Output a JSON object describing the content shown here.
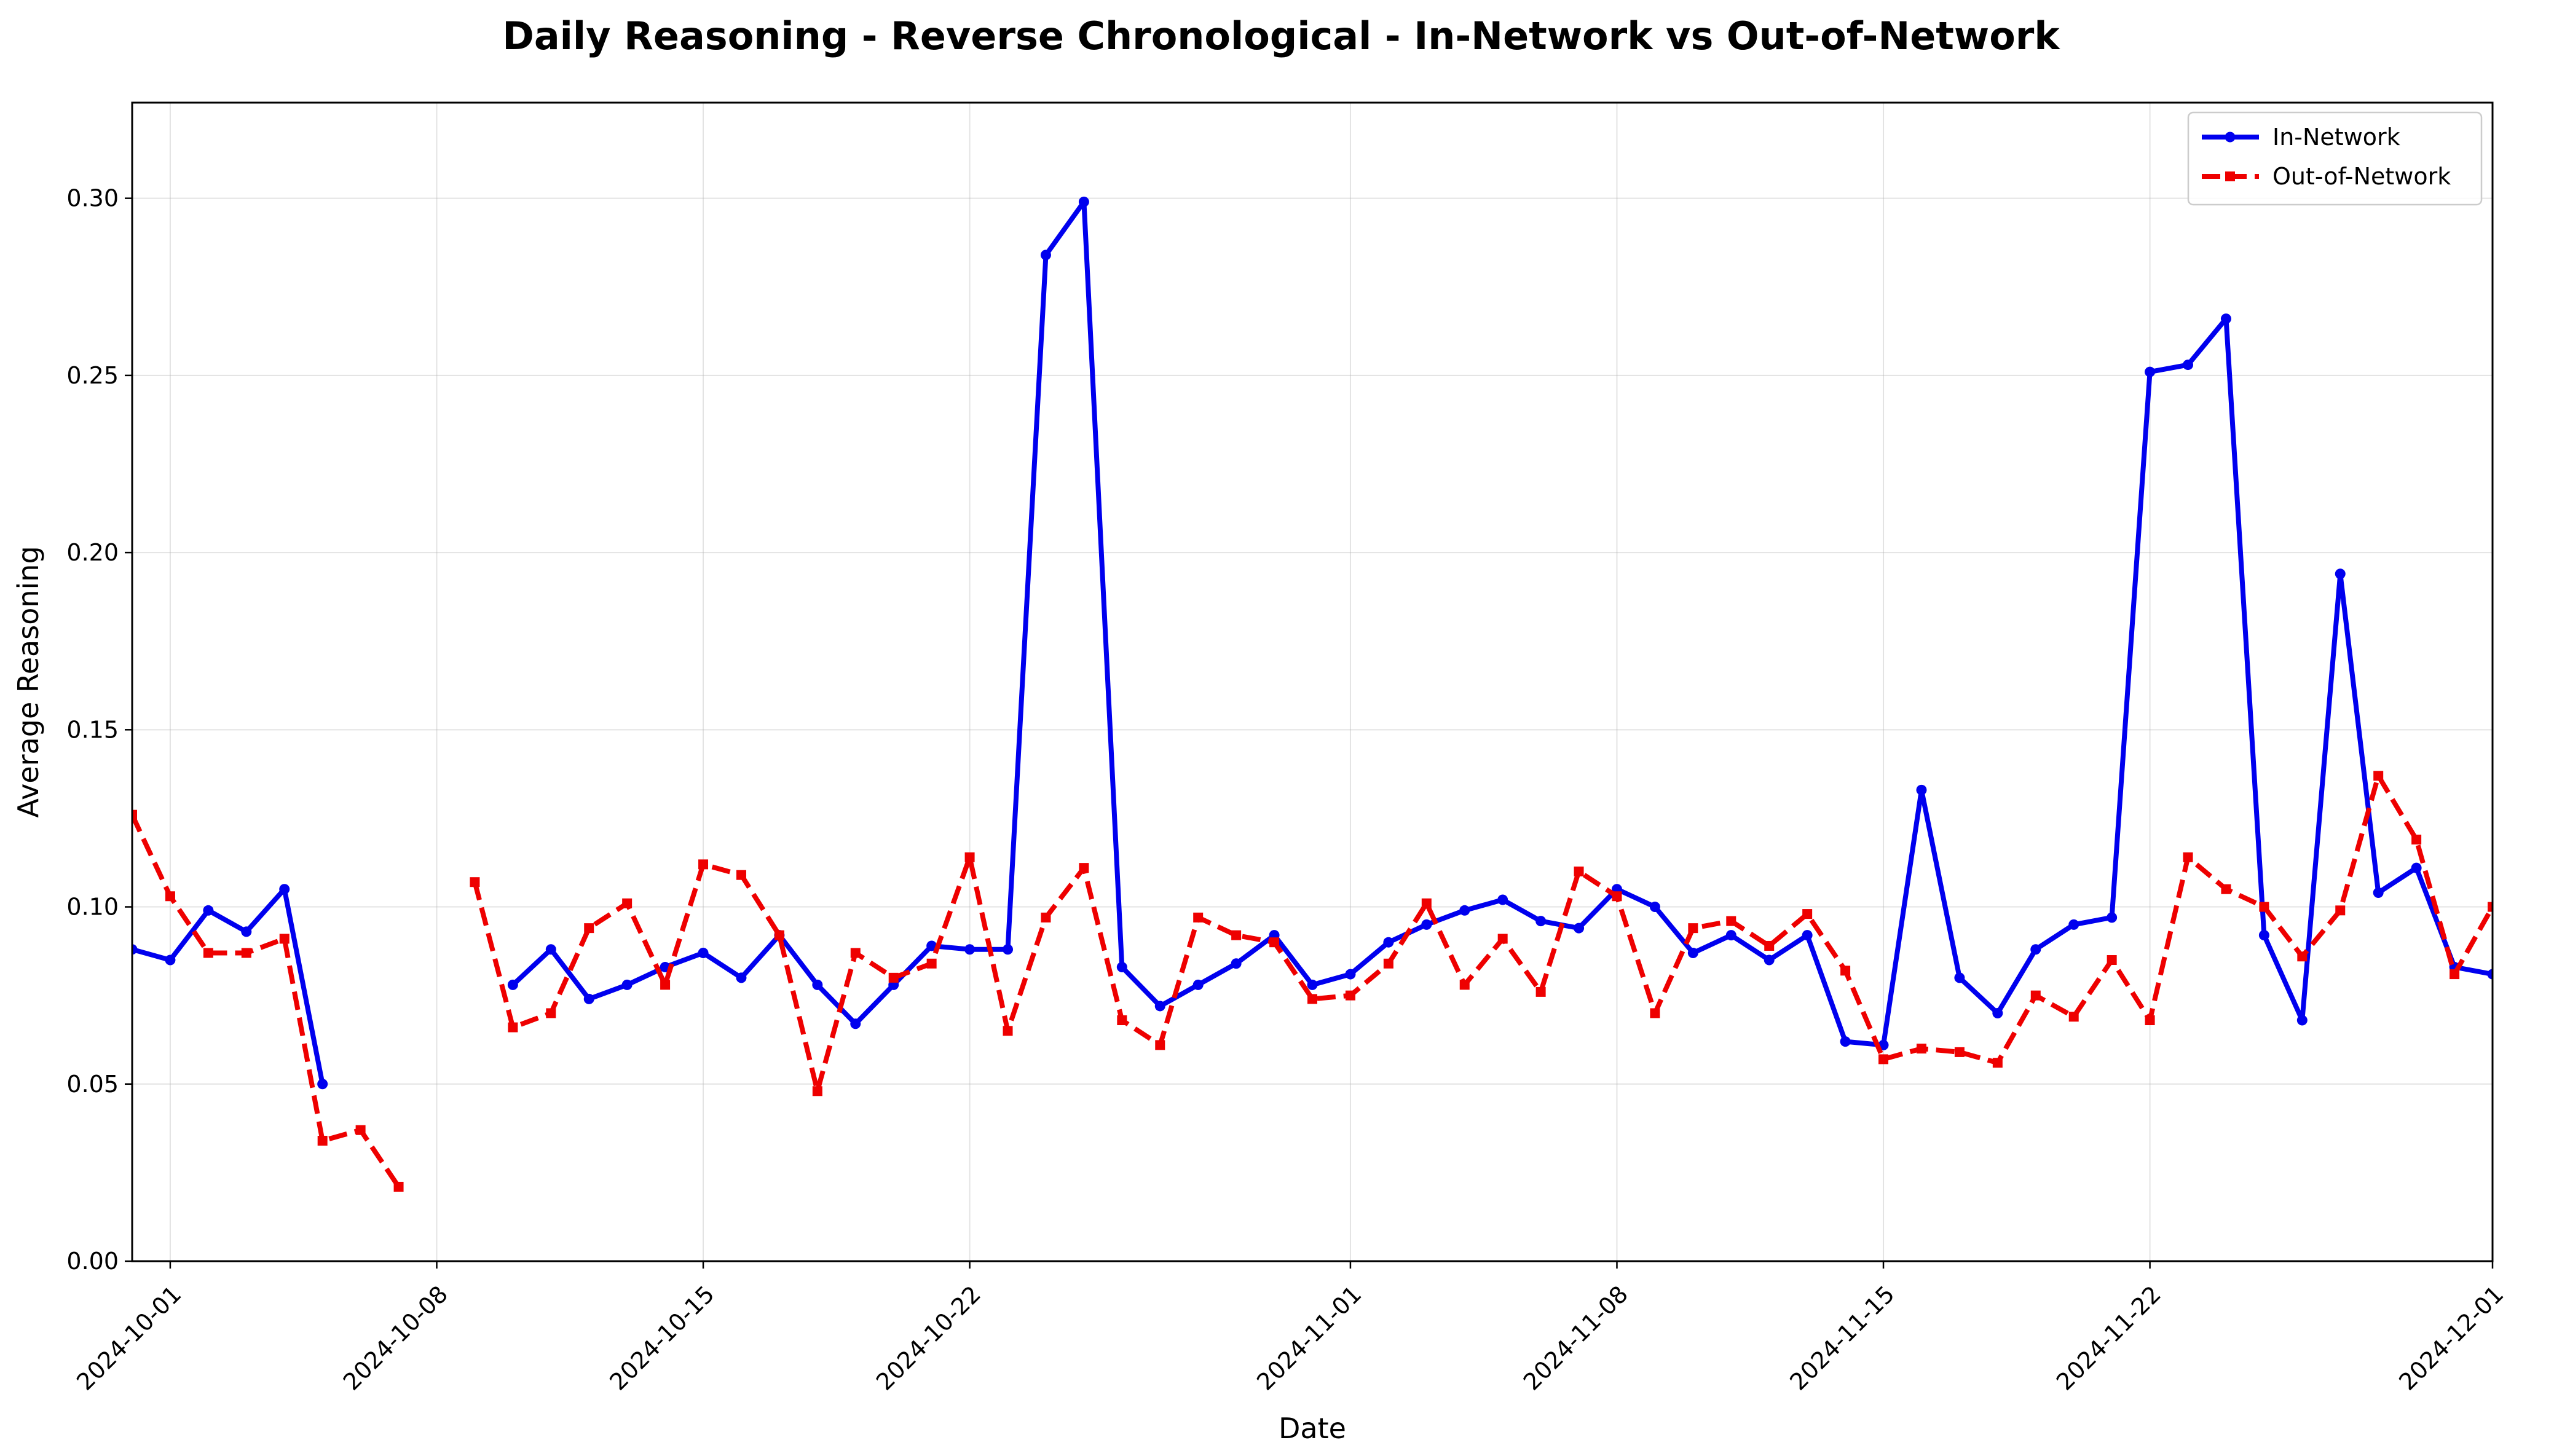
{
  "chart_data": {
    "type": "line",
    "title": "Daily Reasoning - Reverse Chronological - In-Network vs Out-of-Network",
    "xlabel": "Date",
    "ylabel": "Average Reasoning",
    "xlim": [
      "2024-09-30",
      "2024-12-01"
    ],
    "ylim": [
      0,
      0.327
    ],
    "x_ticks": [
      "2024-10-01",
      "2024-10-08",
      "2024-10-15",
      "2024-10-22",
      "2024-11-01",
      "2024-11-08",
      "2024-11-15",
      "2024-11-22",
      "2024-12-01"
    ],
    "y_ticks": [
      "0.00",
      "0.05",
      "0.10",
      "0.15",
      "0.20",
      "0.25",
      "0.30"
    ],
    "grid": true,
    "legend_position": "top-right",
    "series": [
      {
        "name": "In-Network",
        "color": "#0000ee",
        "style": "solid",
        "marker": "circle",
        "points": [
          [
            "2024-09-30",
            0.088
          ],
          [
            "2024-10-01",
            0.085
          ],
          [
            "2024-10-02",
            0.099
          ],
          [
            "2024-10-03",
            0.093
          ],
          [
            "2024-10-04",
            0.105
          ],
          [
            "2024-10-05",
            0.05
          ],
          [
            "2024-10-06",
            null
          ],
          [
            "2024-10-07",
            null
          ],
          [
            "2024-10-08",
            null
          ],
          [
            "2024-10-09",
            null
          ],
          [
            "2024-10-10",
            0.078
          ],
          [
            "2024-10-11",
            0.088
          ],
          [
            "2024-10-12",
            0.074
          ],
          [
            "2024-10-13",
            0.078
          ],
          [
            "2024-10-14",
            0.083
          ],
          [
            "2024-10-15",
            0.087
          ],
          [
            "2024-10-16",
            0.08
          ],
          [
            "2024-10-17",
            0.092
          ],
          [
            "2024-10-18",
            0.078
          ],
          [
            "2024-10-19",
            0.067
          ],
          [
            "2024-10-20",
            0.078
          ],
          [
            "2024-10-21",
            0.089
          ],
          [
            "2024-10-22",
            0.088
          ],
          [
            "2024-10-23",
            0.088
          ],
          [
            "2024-10-24",
            0.284
          ],
          [
            "2024-10-25",
            0.299
          ],
          [
            "2024-10-26",
            0.083
          ],
          [
            "2024-10-27",
            0.072
          ],
          [
            "2024-10-28",
            0.078
          ],
          [
            "2024-10-29",
            0.084
          ],
          [
            "2024-10-30",
            0.092
          ],
          [
            "2024-10-31",
            0.078
          ],
          [
            "2024-11-01",
            0.081
          ],
          [
            "2024-11-02",
            0.09
          ],
          [
            "2024-11-03",
            0.095
          ],
          [
            "2024-11-04",
            0.099
          ],
          [
            "2024-11-05",
            0.102
          ],
          [
            "2024-11-06",
            0.096
          ],
          [
            "2024-11-07",
            0.094
          ],
          [
            "2024-11-08",
            0.105
          ],
          [
            "2024-11-09",
            0.1
          ],
          [
            "2024-11-10",
            0.087
          ],
          [
            "2024-11-11",
            0.092
          ],
          [
            "2024-11-12",
            0.085
          ],
          [
            "2024-11-13",
            0.092
          ],
          [
            "2024-11-14",
            0.062
          ],
          [
            "2024-11-15",
            0.061
          ],
          [
            "2024-11-16",
            0.133
          ],
          [
            "2024-11-17",
            0.08
          ],
          [
            "2024-11-18",
            0.07
          ],
          [
            "2024-11-19",
            0.088
          ],
          [
            "2024-11-20",
            0.095
          ],
          [
            "2024-11-21",
            0.097
          ],
          [
            "2024-11-22",
            0.251
          ],
          [
            "2024-11-23",
            0.253
          ],
          [
            "2024-11-24",
            0.266
          ],
          [
            "2024-11-25",
            0.092
          ],
          [
            "2024-11-26",
            0.068
          ],
          [
            "2024-11-27",
            0.194
          ],
          [
            "2024-11-28",
            0.104
          ],
          [
            "2024-11-29",
            0.111
          ],
          [
            "2024-11-30",
            0.083
          ],
          [
            "2024-12-01",
            0.081
          ]
        ]
      },
      {
        "name": "Out-of-Network",
        "color": "#ee0000",
        "style": "dashed",
        "marker": "square",
        "points": [
          [
            "2024-09-30",
            0.126
          ],
          [
            "2024-10-01",
            0.103
          ],
          [
            "2024-10-02",
            0.087
          ],
          [
            "2024-10-03",
            0.087
          ],
          [
            "2024-10-04",
            0.091
          ],
          [
            "2024-10-05",
            0.034
          ],
          [
            "2024-10-06",
            0.037
          ],
          [
            "2024-10-07",
            0.021
          ],
          [
            "2024-10-08",
            null
          ],
          [
            "2024-10-09",
            0.107
          ],
          [
            "2024-10-10",
            0.066
          ],
          [
            "2024-10-11",
            0.07
          ],
          [
            "2024-10-12",
            0.094
          ],
          [
            "2024-10-13",
            0.101
          ],
          [
            "2024-10-14",
            0.078
          ],
          [
            "2024-10-15",
            0.112
          ],
          [
            "2024-10-16",
            0.109
          ],
          [
            "2024-10-17",
            0.092
          ],
          [
            "2024-10-18",
            0.048
          ],
          [
            "2024-10-19",
            0.087
          ],
          [
            "2024-10-20",
            0.08
          ],
          [
            "2024-10-21",
            0.084
          ],
          [
            "2024-10-22",
            0.114
          ],
          [
            "2024-10-23",
            0.065
          ],
          [
            "2024-10-24",
            0.097
          ],
          [
            "2024-10-25",
            0.111
          ],
          [
            "2024-10-26",
            0.068
          ],
          [
            "2024-10-27",
            0.061
          ],
          [
            "2024-10-28",
            0.097
          ],
          [
            "2024-10-29",
            0.092
          ],
          [
            "2024-10-30",
            0.09
          ],
          [
            "2024-10-31",
            0.074
          ],
          [
            "2024-11-01",
            0.075
          ],
          [
            "2024-11-02",
            0.084
          ],
          [
            "2024-11-03",
            0.101
          ],
          [
            "2024-11-04",
            0.078
          ],
          [
            "2024-11-05",
            0.091
          ],
          [
            "2024-11-06",
            0.076
          ],
          [
            "2024-11-07",
            0.11
          ],
          [
            "2024-11-08",
            0.103
          ],
          [
            "2024-11-09",
            0.07
          ],
          [
            "2024-11-10",
            0.094
          ],
          [
            "2024-11-11",
            0.096
          ],
          [
            "2024-11-12",
            0.089
          ],
          [
            "2024-11-13",
            0.098
          ],
          [
            "2024-11-14",
            0.082
          ],
          [
            "2024-11-15",
            0.057
          ],
          [
            "2024-11-16",
            0.06
          ],
          [
            "2024-11-17",
            0.059
          ],
          [
            "2024-11-18",
            0.056
          ],
          [
            "2024-11-19",
            0.075
          ],
          [
            "2024-11-20",
            0.069
          ],
          [
            "2024-11-21",
            0.085
          ],
          [
            "2024-11-22",
            0.068
          ],
          [
            "2024-11-23",
            0.114
          ],
          [
            "2024-11-24",
            0.105
          ],
          [
            "2024-11-25",
            0.1
          ],
          [
            "2024-11-26",
            0.086
          ],
          [
            "2024-11-27",
            0.099
          ],
          [
            "2024-11-28",
            0.137
          ],
          [
            "2024-11-29",
            0.119
          ],
          [
            "2024-11-30",
            0.081
          ],
          [
            "2024-12-01",
            0.1
          ]
        ]
      }
    ]
  }
}
